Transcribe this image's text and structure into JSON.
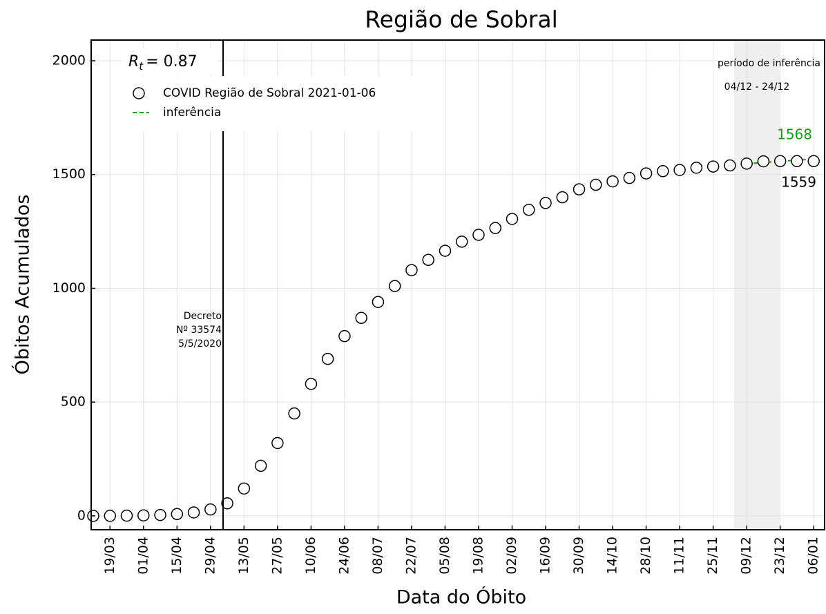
{
  "chart_data": {
    "type": "line",
    "title": "Região de Sobral",
    "xlabel": "Data do Óbito",
    "ylabel": "Óbitos Acumulados",
    "categories": [
      null,
      "19/03",
      null,
      "01/04",
      null,
      "15/04",
      null,
      "29/04",
      null,
      "13/05",
      null,
      "27/05",
      null,
      "10/06",
      null,
      "24/06",
      null,
      "08/07",
      null,
      "22/07",
      null,
      "05/08",
      null,
      "19/08",
      null,
      "02/09",
      null,
      "16/09",
      null,
      "30/09",
      null,
      "14/10",
      null,
      "28/10",
      null,
      "11/11",
      null,
      "25/11",
      null,
      "09/12",
      null,
      "23/12",
      null,
      "06/01"
    ],
    "series": [
      {
        "name": "COVID Região de Sobral 2021-01-06",
        "color": "#000000",
        "values": [
          0,
          0,
          1,
          2,
          4,
          8,
          15,
          28,
          55,
          120,
          220,
          320,
          450,
          580,
          690,
          790,
          870,
          940,
          1010,
          1080,
          1125,
          1165,
          1205,
          1235,
          1265,
          1305,
          1345,
          1375,
          1400,
          1435,
          1455,
          1470,
          1485,
          1505,
          1515,
          1520,
          1530,
          1535,
          1540,
          1548,
          1558,
          1559,
          1559,
          1559
        ]
      },
      {
        "name": "inferência",
        "color": "#1a9a1a",
        "values": [
          null,
          null,
          null,
          null,
          null,
          null,
          null,
          null,
          null,
          null,
          null,
          null,
          null,
          null,
          null,
          null,
          null,
          null,
          null,
          null,
          null,
          null,
          null,
          null,
          null,
          null,
          null,
          null,
          null,
          null,
          null,
          null,
          null,
          null,
          null,
          null,
          null,
          null,
          null,
          1547,
          1553,
          1558,
          1563,
          1568
        ]
      }
    ],
    "ylim": [
      -61,
      2091
    ],
    "yticks": [
      0,
      500,
      1000,
      1500,
      2000
    ],
    "grid": true,
    "rt": {
      "symbol": "R",
      "sub": "t",
      "value": "= 0.87"
    },
    "decree": [
      "Decreto",
      "Nº 33574",
      "5/5/2020"
    ],
    "inference_period": {
      "label": "período de inferência",
      "range": "04/12 - 24/12"
    },
    "end_labels": {
      "inference": "1568",
      "observed": "1559"
    }
  }
}
